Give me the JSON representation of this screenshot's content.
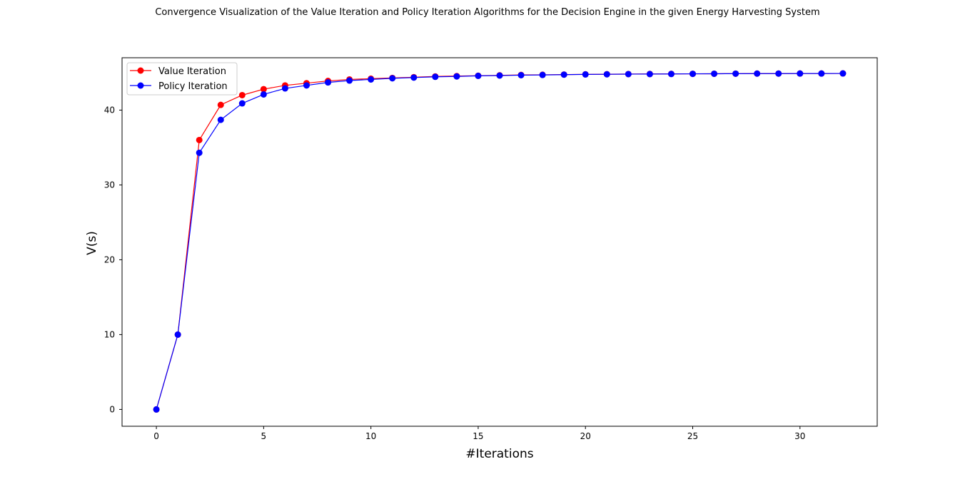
{
  "chart_data": {
    "type": "line",
    "title": "Convergence Visualization of the Value Iteration and Policy Iteration Algorithms for the Decision Engine in the given Energy Harvesting System",
    "xlabel": "#Iterations",
    "ylabel": "V(s)",
    "xlim": [
      -1.6,
      33.6
    ],
    "ylim": [
      -2.25,
      47.0
    ],
    "xticks": [
      0,
      5,
      10,
      15,
      20,
      25,
      30
    ],
    "yticks": [
      0,
      10,
      20,
      30,
      40
    ],
    "grid": false,
    "legend_position": "top-left",
    "x": [
      0,
      1,
      2,
      3,
      4,
      5,
      6,
      7,
      8,
      9,
      10,
      11,
      12,
      13,
      14,
      15,
      16,
      17,
      18,
      19,
      20,
      21,
      22,
      23,
      24,
      25,
      26,
      27,
      28,
      29,
      30,
      31,
      32
    ],
    "series": [
      {
        "name": "Value Iteration",
        "color": "#ff0000",
        "values": [
          0,
          10,
          36.0,
          40.7,
          42.0,
          42.8,
          43.3,
          43.6,
          43.9,
          44.1,
          44.2,
          44.3,
          44.4,
          44.5,
          44.55,
          44.6,
          44.65,
          44.7,
          44.72,
          44.75,
          44.78,
          44.8,
          44.82,
          44.83,
          44.84,
          44.85,
          44.86,
          44.87,
          44.88,
          44.88,
          44.89,
          44.89,
          44.9
        ]
      },
      {
        "name": "Policy Iteration",
        "color": "#0000ff",
        "values": [
          0,
          10,
          34.3,
          38.7,
          40.9,
          42.1,
          42.9,
          43.3,
          43.7,
          43.95,
          44.1,
          44.25,
          44.35,
          44.45,
          44.5,
          44.58,
          44.62,
          44.67,
          44.7,
          44.74,
          44.77,
          44.79,
          44.81,
          44.82,
          44.83,
          44.85,
          44.86,
          44.87,
          44.88,
          44.88,
          44.89,
          44.89,
          44.9
        ]
      }
    ]
  }
}
